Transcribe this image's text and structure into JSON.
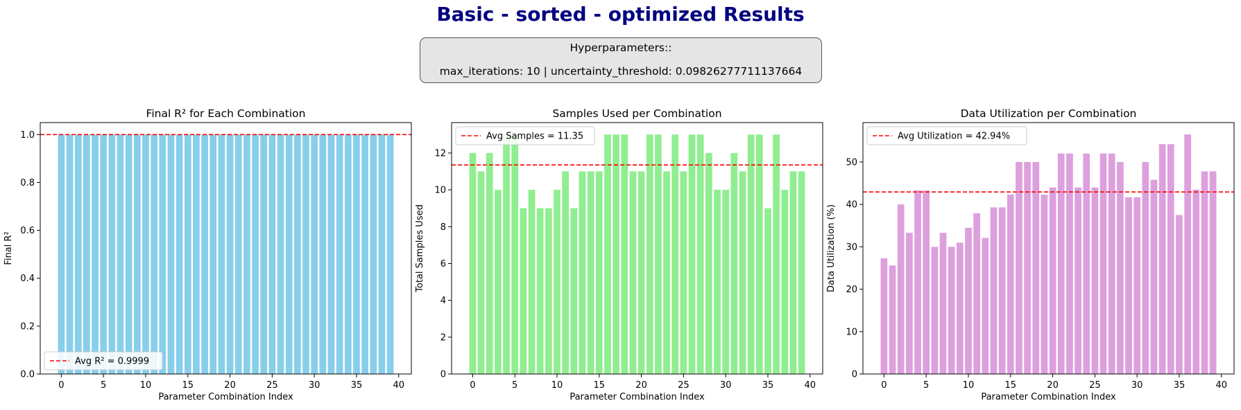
{
  "title": "Basic - sorted - optimized  Results",
  "hyperparameters": {
    "heading": "Hyperparameters::",
    "values": "max_iterations: 10 | uncertainty_threshold: 0.09826277711137664"
  },
  "colors": {
    "title": "#000080",
    "r2_bars": "#87ceeb",
    "samples_bars": "#90ee90",
    "util_bars": "#dda0dd",
    "avg_line": "#ff0000"
  },
  "chart_data": [
    {
      "type": "bar",
      "title": "Final R² for Each Combination",
      "xlabel": "Parameter Combination Index",
      "ylabel": "Final R²",
      "color": "#87ceeb",
      "x": [
        0,
        1,
        2,
        3,
        4,
        5,
        6,
        7,
        8,
        9,
        10,
        11,
        12,
        13,
        14,
        15,
        16,
        17,
        18,
        19,
        20,
        21,
        22,
        23,
        24,
        25,
        26,
        27,
        28,
        29,
        30,
        31,
        32,
        33,
        34,
        35,
        36,
        37,
        38,
        39
      ],
      "values": [
        0.9999,
        0.9999,
        0.9999,
        0.9999,
        0.9999,
        0.9999,
        0.9999,
        0.9999,
        0.9999,
        0.9999,
        0.9999,
        0.9999,
        0.9999,
        0.9999,
        0.9999,
        0.9999,
        0.9999,
        0.9999,
        0.9999,
        0.9999,
        0.9999,
        0.9999,
        0.9999,
        0.9999,
        0.9999,
        0.9999,
        0.9999,
        0.9999,
        0.9999,
        0.9999,
        0.9999,
        0.9999,
        0.9999,
        0.9999,
        0.9999,
        0.9999,
        0.9999,
        0.9999,
        0.9999,
        0.9999
      ],
      "xlim": [
        -2.5,
        41.5
      ],
      "ylim": [
        0,
        1.05
      ],
      "xticks": [
        0,
        5,
        10,
        15,
        20,
        25,
        30,
        35,
        40
      ],
      "yticks": [
        0.0,
        0.2,
        0.4,
        0.6,
        0.8,
        1.0
      ],
      "ytick_labels": [
        "0.0",
        "0.2",
        "0.4",
        "0.6",
        "0.8",
        "1.0"
      ],
      "avg_line": {
        "value": 0.9999,
        "label": "Avg R² = 0.9999"
      },
      "legend_position": "lower-left"
    },
    {
      "type": "bar",
      "title": "Samples Used per Combination",
      "xlabel": "Parameter Combination Index",
      "ylabel": "Total Samples Used",
      "color": "#90ee90",
      "x": [
        0,
        1,
        2,
        3,
        4,
        5,
        6,
        7,
        8,
        9,
        10,
        11,
        12,
        13,
        14,
        15,
        16,
        17,
        18,
        19,
        20,
        21,
        22,
        23,
        24,
        25,
        26,
        27,
        28,
        29,
        30,
        31,
        32,
        33,
        34,
        35,
        36,
        37,
        38,
        39
      ],
      "values": [
        12,
        11,
        12,
        10,
        13,
        13,
        9,
        10,
        9,
        9,
        10,
        11,
        9,
        11,
        11,
        11,
        13,
        13,
        13,
        11,
        11,
        13,
        13,
        11,
        13,
        11,
        13,
        13,
        12,
        10,
        10,
        12,
        11,
        13,
        13,
        9,
        13,
        10,
        11,
        11
      ],
      "xlim": [
        -2.5,
        41.5
      ],
      "ylim": [
        0,
        13.65
      ],
      "xticks": [
        0,
        5,
        10,
        15,
        20,
        25,
        30,
        35,
        40
      ],
      "yticks": [
        0,
        2,
        4,
        6,
        8,
        10,
        12
      ],
      "ytick_labels": [
        "0",
        "2",
        "4",
        "6",
        "8",
        "10",
        "12"
      ],
      "avg_line": {
        "value": 11.35,
        "label": "Avg Samples = 11.35"
      },
      "legend_position": "upper-left"
    },
    {
      "type": "bar",
      "title": "Data Utilization per Combination",
      "xlabel": "Parameter Combination Index",
      "ylabel": "Data Utilization (%)",
      "color": "#dda0dd",
      "x": [
        0,
        1,
        2,
        3,
        4,
        5,
        6,
        7,
        8,
        9,
        10,
        11,
        12,
        13,
        14,
        15,
        16,
        17,
        18,
        19,
        20,
        21,
        22,
        23,
        24,
        25,
        26,
        27,
        28,
        29,
        30,
        31,
        32,
        33,
        34,
        35,
        36,
        37,
        38,
        39
      ],
      "values": [
        27.3,
        25.6,
        40.0,
        33.3,
        43.3,
        43.3,
        30.0,
        33.3,
        30.0,
        31.0,
        34.5,
        37.9,
        32.1,
        39.3,
        39.3,
        42.3,
        50.0,
        50.0,
        50.0,
        42.3,
        44.0,
        52.0,
        52.0,
        44.0,
        52.0,
        44.0,
        52.0,
        52.0,
        50.0,
        41.7,
        41.7,
        50.0,
        45.8,
        54.2,
        54.2,
        37.5,
        56.5,
        43.5,
        47.8,
        47.8
      ],
      "xlim": [
        -2.5,
        41.5
      ],
      "ylim": [
        0,
        59.3
      ],
      "xticks": [
        0,
        5,
        10,
        15,
        20,
        25,
        30,
        35,
        40
      ],
      "yticks": [
        0,
        10,
        20,
        30,
        40,
        50
      ],
      "ytick_labels": [
        "0",
        "10",
        "20",
        "30",
        "40",
        "50"
      ],
      "avg_line": {
        "value": 42.94,
        "label": "Avg Utilization = 42.94%"
      },
      "legend_position": "upper-left"
    }
  ]
}
